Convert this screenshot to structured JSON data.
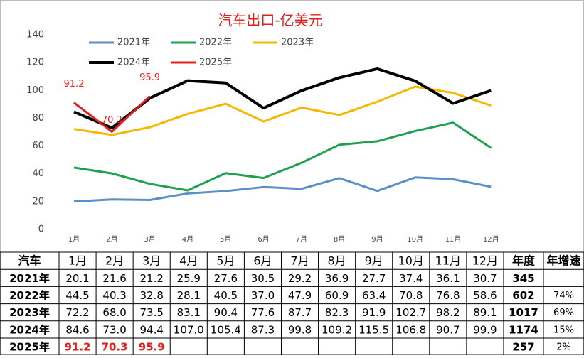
{
  "chart_data": {
    "type": "line",
    "title": "汽车出口-亿美元",
    "categories": [
      "1月",
      "2月",
      "3月",
      "4月",
      "5月",
      "6月",
      "7月",
      "8月",
      "9月",
      "10月",
      "11月",
      "12月"
    ],
    "ylim": [
      0,
      140
    ],
    "yticks": [
      0,
      20,
      40,
      60,
      80,
      100,
      120,
      140
    ],
    "grid": false,
    "series": [
      {
        "name": "2021年",
        "color": "#5b8fc7",
        "width": 3,
        "values": [
          20.1,
          21.6,
          21.2,
          25.9,
          27.6,
          30.5,
          29.2,
          36.9,
          27.7,
          37.4,
          36.1,
          30.7
        ]
      },
      {
        "name": "2022年",
        "color": "#1fa050",
        "width": 3,
        "values": [
          44.5,
          40.3,
          32.8,
          28.1,
          40.5,
          37.0,
          47.9,
          60.9,
          63.4,
          70.8,
          76.8,
          58.6
        ]
      },
      {
        "name": "2023年",
        "color": "#f5b800",
        "width": 3,
        "values": [
          72.2,
          68.0,
          73.5,
          83.1,
          90.4,
          77.6,
          87.7,
          82.3,
          91.9,
          102.7,
          98.2,
          89.1
        ]
      },
      {
        "name": "2024年",
        "color": "#000000",
        "width": 4,
        "values": [
          84.6,
          73.0,
          94.4,
          107.0,
          105.4,
          87.3,
          99.8,
          109.2,
          115.5,
          106.8,
          90.7,
          99.9
        ]
      },
      {
        "name": "2025年",
        "color": "#e0201b",
        "width": 3,
        "data_labels": true,
        "values": [
          91.2,
          70.3,
          95.9,
          null,
          null,
          null,
          null,
          null,
          null,
          null,
          null,
          null
        ]
      }
    ]
  },
  "table": {
    "header": [
      "汽车",
      "1月",
      "2月",
      "3月",
      "4月",
      "5月",
      "6月",
      "7月",
      "8月",
      "9月",
      "10月",
      "11月",
      "12月",
      "年度",
      "年增速"
    ],
    "highlight_row": 4,
    "highlight_color": "#e0201b",
    "rows": [
      [
        "2021年",
        "20.1",
        "21.6",
        "21.2",
        "25.9",
        "27.6",
        "30.5",
        "29.2",
        "36.9",
        "27.7",
        "37.4",
        "36.1",
        "30.7",
        "345",
        null
      ],
      [
        "2022年",
        "44.5",
        "40.3",
        "32.8",
        "28.1",
        "40.5",
        "37.0",
        "47.9",
        "60.9",
        "63.4",
        "70.8",
        "76.8",
        "58.6",
        "602",
        "74%"
      ],
      [
        "2023年",
        "72.2",
        "68.0",
        "73.5",
        "83.1",
        "90.4",
        "77.6",
        "87.7",
        "82.3",
        "91.9",
        "102.7",
        "98.2",
        "89.1",
        "1017",
        "69%"
      ],
      [
        "2024年",
        "84.6",
        "73.0",
        "94.4",
        "107.0",
        "105.4",
        "87.3",
        "99.8",
        "109.2",
        "115.5",
        "106.8",
        "90.7",
        "99.9",
        "1174",
        "15%"
      ],
      [
        "2025年",
        "91.2",
        "70.3",
        "95.9",
        null,
        null,
        null,
        null,
        null,
        null,
        null,
        null,
        null,
        "257",
        "2%"
      ]
    ]
  }
}
